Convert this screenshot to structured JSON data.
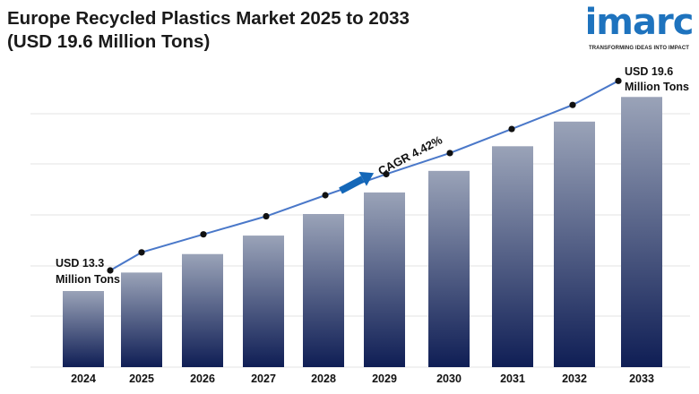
{
  "title": {
    "line1": "Europe Recycled Plastics Market 2025 to 2033",
    "line2": "(USD 19.6 Million Tons)"
  },
  "logo": {
    "name": "imarc",
    "tagline": "TRANSFORMING IDEAS INTO IMPACT"
  },
  "chart_data": {
    "type": "bar",
    "categories": [
      "2024",
      "2025",
      "2026",
      "2027",
      "2028",
      "2029",
      "2030",
      "2031",
      "2032",
      "2033"
    ],
    "values": [
      13.3,
      13.9,
      14.5,
      15.1,
      15.8,
      16.5,
      17.2,
      18.0,
      18.8,
      19.6
    ],
    "trend_line": [
      13.3,
      13.9,
      14.5,
      15.1,
      15.8,
      16.5,
      17.2,
      18.0,
      18.8,
      19.6
    ],
    "annotations": {
      "start_line1": "USD 13.3",
      "start_line2": "Million Tons",
      "end_line1": "USD 19.6",
      "end_line2": "Million Tons",
      "cagr": "CAGR 4.42%"
    },
    "xlabel": "",
    "ylabel": "",
    "grid": true,
    "colors": {
      "bar_top": "#9aa3b8",
      "bar_bottom": "#0f1e55",
      "line": "#4a78c9",
      "arrow": "#1467b8",
      "grid": "#e3e3e3"
    }
  }
}
